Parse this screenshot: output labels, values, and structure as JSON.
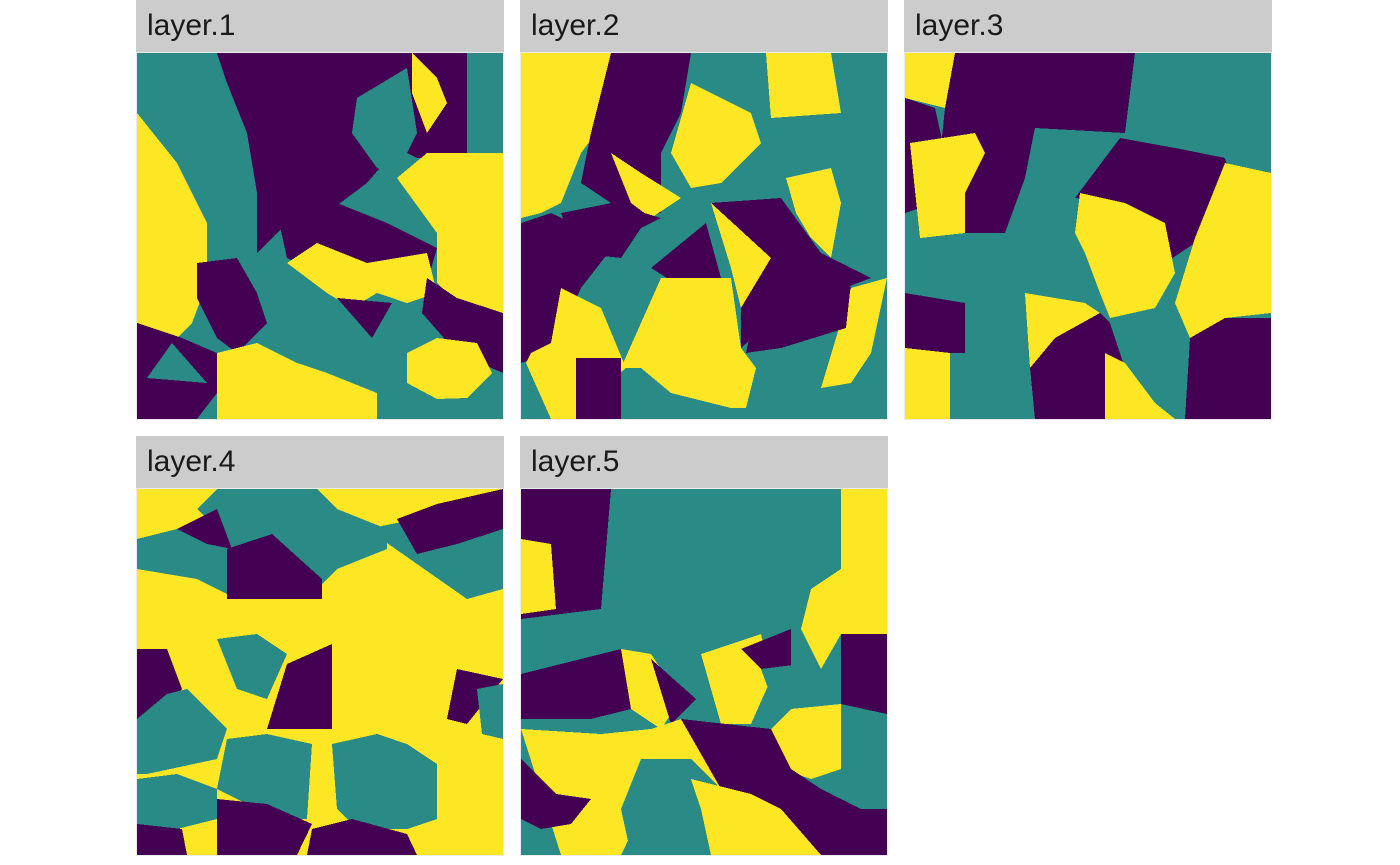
{
  "palette": {
    "low": "#440154",
    "mid": "#2a8b86",
    "high": "#fde725",
    "strip_background": "#cccccc",
    "strip_text": "#1a1a1a"
  },
  "panels": [
    {
      "title": "layer.1"
    },
    {
      "title": "layer.2"
    },
    {
      "title": "layer.3"
    },
    {
      "title": "layer.4"
    },
    {
      "title": "layer.5"
    }
  ]
}
